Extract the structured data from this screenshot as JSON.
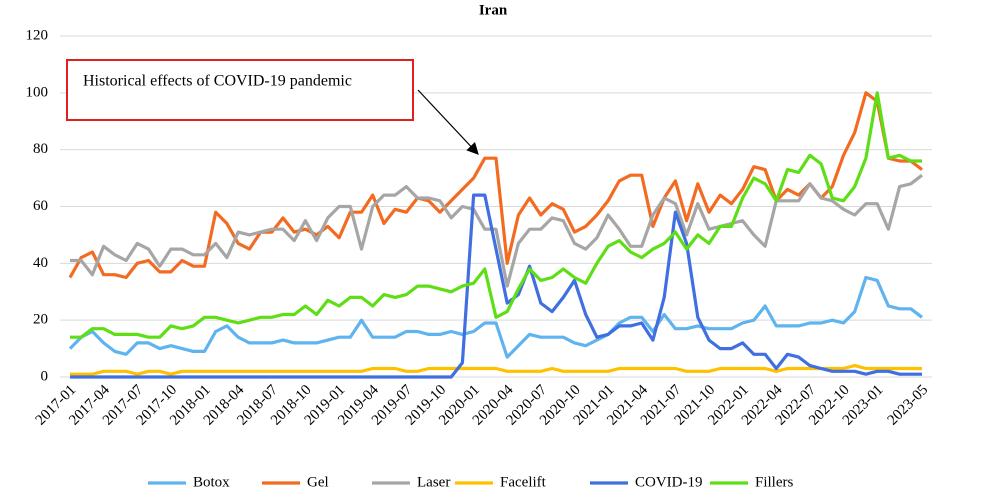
{
  "chart_data": {
    "type": "line",
    "title": "Iran",
    "annotation": "Historical effects of COVID-19 pandemic",
    "categories": [
      "2017-01",
      null,
      null,
      "2017-04",
      null,
      null,
      "2017-07",
      null,
      null,
      "2017-10",
      null,
      null,
      "2018-01",
      null,
      null,
      "2018-04",
      null,
      null,
      "2018-07",
      null,
      null,
      "2018-10",
      null,
      null,
      "2019-01",
      null,
      null,
      "2019-04",
      null,
      null,
      "2019-07",
      null,
      null,
      "2019-10",
      null,
      null,
      "2020-01",
      null,
      null,
      "2020-04",
      null,
      null,
      "2020-07",
      null,
      null,
      "2020-10",
      null,
      null,
      "2021-01",
      null,
      null,
      "2021-04",
      null,
      null,
      "2021-07",
      null,
      null,
      "2021-10",
      null,
      null,
      "2022-01",
      null,
      null,
      "2022-04",
      null,
      null,
      "2022-07",
      null,
      null,
      "2022-10",
      null,
      null,
      "2023-01",
      null,
      null,
      null,
      "2023-05"
    ],
    "ylim": [
      0,
      120
    ],
    "yticks": [
      0,
      20,
      40,
      60,
      80,
      100,
      120
    ],
    "grid": true,
    "legend": "bottom",
    "series": [
      {
        "name": "Botox",
        "color": "#5fb3ef",
        "values": [
          10,
          14,
          16,
          12,
          9,
          8,
          12,
          12,
          10,
          11,
          10,
          9,
          9,
          16,
          18,
          14,
          12,
          12,
          12,
          13,
          12,
          12,
          12,
          13,
          14,
          14,
          20,
          14,
          14,
          14,
          16,
          16,
          15,
          15,
          16,
          15,
          16,
          19,
          19,
          7,
          11,
          15,
          14,
          14,
          14,
          12,
          11,
          13,
          15,
          19,
          21,
          21,
          16,
          22,
          17,
          17,
          18,
          17,
          17,
          17,
          19,
          20,
          25,
          18,
          18,
          18,
          19,
          19,
          20,
          19,
          23,
          35,
          34,
          25,
          24,
          24,
          21
        ]
      },
      {
        "name": "Gel",
        "color": "#f26b21",
        "values": [
          35,
          42,
          44,
          36,
          36,
          35,
          40,
          41,
          37,
          37,
          41,
          39,
          39,
          58,
          54,
          47,
          45,
          51,
          51,
          56,
          51,
          52,
          50,
          53,
          49,
          58,
          58,
          64,
          54,
          59,
          58,
          63,
          62,
          58,
          62,
          66,
          70,
          77,
          77,
          40,
          57,
          63,
          57,
          61,
          59,
          51,
          53,
          57,
          62,
          69,
          71,
          71,
          53,
          63,
          69,
          55,
          68,
          58,
          64,
          61,
          66,
          74,
          73,
          62,
          66,
          64,
          68,
          63,
          67,
          78,
          86,
          100,
          97,
          77,
          76,
          76,
          73
        ]
      },
      {
        "name": "Laser",
        "color": "#a6a6a6",
        "values": [
          41,
          41,
          36,
          46,
          43,
          41,
          47,
          45,
          39,
          45,
          45,
          43,
          43,
          47,
          42,
          51,
          50,
          51,
          52,
          52,
          48,
          55,
          48,
          56,
          60,
          60,
          45,
          60,
          64,
          64,
          67,
          63,
          63,
          62,
          56,
          60,
          59,
          52,
          52,
          32,
          47,
          52,
          52,
          56,
          55,
          47,
          45,
          49,
          57,
          52,
          46,
          46,
          57,
          63,
          61,
          50,
          61,
          52,
          53,
          54,
          55,
          50,
          46,
          62,
          62,
          62,
          68,
          63,
          62,
          59,
          57,
          61,
          61,
          52,
          67,
          68,
          71
        ]
      },
      {
        "name": "Facelift",
        "color": "#ffc000",
        "values": [
          1,
          1,
          1,
          2,
          2,
          2,
          1,
          2,
          2,
          1,
          2,
          2,
          2,
          2,
          2,
          2,
          2,
          2,
          2,
          2,
          2,
          2,
          2,
          2,
          2,
          2,
          2,
          3,
          3,
          3,
          2,
          2,
          3,
          3,
          3,
          3,
          3,
          3,
          3,
          2,
          2,
          2,
          2,
          3,
          2,
          2,
          2,
          2,
          2,
          3,
          3,
          3,
          3,
          3,
          3,
          2,
          2,
          2,
          3,
          3,
          3,
          3,
          3,
          2,
          3,
          3,
          3,
          3,
          3,
          3,
          4,
          3,
          3,
          3,
          3,
          3,
          3
        ]
      },
      {
        "name": "COVID-19",
        "color": "#3f6fe0",
        "values": [
          0,
          0,
          0,
          0,
          0,
          0,
          0,
          0,
          0,
          0,
          0,
          0,
          0,
          0,
          0,
          0,
          0,
          0,
          0,
          0,
          0,
          0,
          0,
          0,
          0,
          0,
          0,
          0,
          0,
          0,
          0,
          0,
          0,
          0,
          0,
          5,
          64,
          64,
          45,
          26,
          29,
          39,
          26,
          23,
          28,
          34,
          22,
          14,
          15,
          18,
          18,
          19,
          13,
          28,
          58,
          47,
          21,
          13,
          10,
          10,
          12,
          8,
          8,
          3,
          8,
          7,
          4,
          3,
          2,
          2,
          2,
          1,
          2,
          2,
          1,
          1,
          1
        ]
      },
      {
        "name": "Fillers",
        "color": "#5ede14",
        "values": [
          14,
          14,
          17,
          17,
          15,
          15,
          15,
          14,
          14,
          18,
          17,
          18,
          21,
          21,
          20,
          19,
          20,
          21,
          21,
          22,
          22,
          25,
          22,
          27,
          25,
          28,
          28,
          25,
          29,
          28,
          29,
          32,
          32,
          31,
          30,
          32,
          33,
          38,
          21,
          23,
          31,
          38,
          34,
          35,
          38,
          35,
          33,
          40,
          46,
          48,
          44,
          42,
          45,
          47,
          51,
          45,
          50,
          47,
          53,
          53,
          63,
          70,
          68,
          62,
          73,
          72,
          78,
          75,
          63,
          62,
          67,
          77,
          100,
          77,
          78,
          76,
          76
        ]
      }
    ]
  }
}
